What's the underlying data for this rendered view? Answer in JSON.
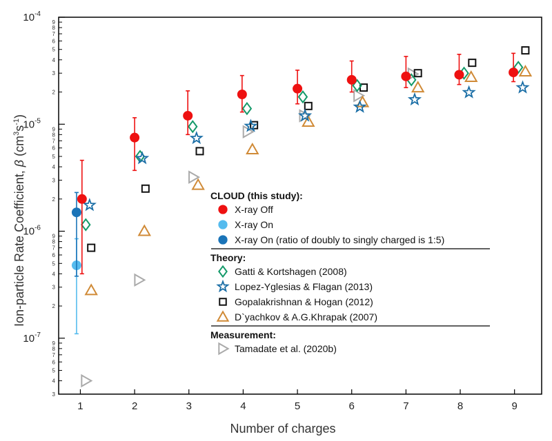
{
  "chart_data": {
    "type": "scatter",
    "xlabel": "Number of charges",
    "ylabel": {
      "text": "Ion-particle Rate Coefficient, ",
      "symbol": "β",
      "unit_open": " (cm",
      "unit_exp1": "3",
      "unit_mid": "s",
      "unit_exp2": "-1",
      "unit_close": ")"
    },
    "xlim": [
      0.6,
      9.5
    ],
    "ylim": [
      3e-08,
      0.0001
    ],
    "yscale": "log",
    "x_ticks": [
      "1",
      "2",
      "3",
      "4",
      "5",
      "6",
      "7",
      "8",
      "9"
    ],
    "y_major_ticks": [
      {
        "value": 1e-07,
        "base": "10",
        "exp": "-7"
      },
      {
        "value": 1e-06,
        "base": "10",
        "exp": "-6"
      },
      {
        "value": 1e-05,
        "base": "10",
        "exp": "-5"
      },
      {
        "value": 0.0001,
        "base": "10",
        "exp": "-4"
      }
    ],
    "y_minor_labels": [
      "2",
      "3",
      "4",
      "5",
      "6",
      "7",
      "8",
      "9"
    ],
    "grid": false,
    "legend": {
      "position": "center-right",
      "groups": [
        {
          "heading": "CLOUD (this study):",
          "entries": [
            {
              "label": "X-ray Off",
              "series": 0
            },
            {
              "label": "X-ray On",
              "series": 1
            },
            {
              "label": "X-ray On (ratio of doubly to singly charged is 1:5)",
              "series": 2
            }
          ]
        },
        {
          "heading": "Theory:",
          "entries": [
            {
              "label": "Gatti & Kortshagen (2008)",
              "series": 3
            },
            {
              "label": "Lopez-Yglesias & Flagan (2013)",
              "series": 4
            },
            {
              "label": "Gopalakrishnan & Hogan (2012)",
              "series": 5
            },
            {
              "label": "D`yachkov & A.G.Khrapak (2007)",
              "series": 6
            }
          ]
        },
        {
          "heading": "Measurement:",
          "entries": [
            {
              "label": "Tamadate et al. (2020b)",
              "series": 7
            }
          ]
        }
      ]
    },
    "series": [
      {
        "name": "X-ray Off",
        "marker": "circle-filled",
        "color": "#ee1111",
        "points": [
          {
            "x": 1.03,
            "y": 2e-06,
            "lo": 4e-07,
            "hi": 4.6e-06
          },
          {
            "x": 2.0,
            "y": 7.5e-06,
            "lo": 3.7e-06,
            "hi": 1.15e-05
          },
          {
            "x": 2.98,
            "y": 1.2e-05,
            "lo": 8e-06,
            "hi": 2.05e-05
          },
          {
            "x": 3.98,
            "y": 1.9e-05,
            "lo": 1.3e-05,
            "hi": 2.85e-05
          },
          {
            "x": 5.0,
            "y": 2.15e-05,
            "lo": 1.55e-05,
            "hi": 3.2e-05
          },
          {
            "x": 6.0,
            "y": 2.6e-05,
            "lo": 2e-05,
            "hi": 3.9e-05
          },
          {
            "x": 7.0,
            "y": 2.8e-05,
            "lo": 2.2e-05,
            "hi": 4.3e-05
          },
          {
            "x": 7.98,
            "y": 2.9e-05,
            "lo": 2.35e-05,
            "hi": 4.5e-05
          },
          {
            "x": 8.98,
            "y": 3.05e-05,
            "lo": 2.5e-05,
            "hi": 4.6e-05
          }
        ]
      },
      {
        "name": "X-ray On",
        "marker": "circle-filled",
        "color": "#55bbee",
        "points": [
          {
            "x": 0.93,
            "y": 4.8e-07,
            "lo": 1.1e-07,
            "hi": 8.5e-07
          }
        ]
      },
      {
        "name": "X-ray On (ratio of doubly to singly charged is 1:5)",
        "marker": "circle-filled",
        "color": "#1a74b8",
        "points": [
          {
            "x": 0.93,
            "y": 1.5e-06,
            "lo": 3.8e-07,
            "hi": 2.3e-06
          }
        ]
      },
      {
        "name": "Gatti & Kortshagen (2008)",
        "marker": "diamond",
        "color": "#159a6a",
        "points": [
          {
            "x": 1.1,
            "y": 1.15e-06
          },
          {
            "x": 2.1,
            "y": 5e-06
          },
          {
            "x": 3.07,
            "y": 9.5e-06
          },
          {
            "x": 4.07,
            "y": 1.4e-05
          },
          {
            "x": 5.1,
            "y": 1.8e-05
          },
          {
            "x": 6.1,
            "y": 2.3e-05
          },
          {
            "x": 7.1,
            "y": 2.6e-05
          },
          {
            "x": 8.07,
            "y": 3e-05
          },
          {
            "x": 9.07,
            "y": 3.4e-05
          }
        ]
      },
      {
        "name": "Lopez-Yglesias & Flagan (2013)",
        "marker": "star",
        "color": "#1a6ea6",
        "points": [
          {
            "x": 1.17,
            "y": 1.75e-06
          },
          {
            "x": 2.14,
            "y": 4.8e-06
          },
          {
            "x": 3.14,
            "y": 7.4e-06
          },
          {
            "x": 4.14,
            "y": 9.6e-06
          },
          {
            "x": 5.14,
            "y": 1.2e-05
          },
          {
            "x": 6.15,
            "y": 1.45e-05
          },
          {
            "x": 7.16,
            "y": 1.7e-05
          },
          {
            "x": 8.16,
            "y": 1.98e-05
          },
          {
            "x": 9.15,
            "y": 2.2e-05
          }
        ]
      },
      {
        "name": "Gopalakrishnan & Hogan (2012)",
        "marker": "square",
        "color": "#111111",
        "points": [
          {
            "x": 1.2,
            "y": 7e-07
          },
          {
            "x": 2.2,
            "y": 2.5e-06
          },
          {
            "x": 3.2,
            "y": 5.6e-06
          },
          {
            "x": 4.2,
            "y": 9.8e-06
          },
          {
            "x": 5.2,
            "y": 1.48e-05
          },
          {
            "x": 6.22,
            "y": 2.2e-05
          },
          {
            "x": 7.22,
            "y": 3e-05
          },
          {
            "x": 8.22,
            "y": 3.75e-05
          },
          {
            "x": 9.2,
            "y": 4.9e-05
          }
        ]
      },
      {
        "name": "D`yachkov & A.G.Khrapak (2007)",
        "marker": "triangle-up",
        "color": "#d08a36",
        "points": [
          {
            "x": 1.2,
            "y": 2.8e-07
          },
          {
            "x": 2.18,
            "y": 1e-06
          },
          {
            "x": 3.17,
            "y": 2.7e-06
          },
          {
            "x": 4.17,
            "y": 5.8e-06
          },
          {
            "x": 5.2,
            "y": 1.05e-05
          },
          {
            "x": 6.2,
            "y": 1.6e-05
          },
          {
            "x": 7.22,
            "y": 2.2e-05
          },
          {
            "x": 8.2,
            "y": 2.75e-05
          },
          {
            "x": 9.2,
            "y": 3.1e-05
          }
        ]
      },
      {
        "name": "Tamadate et al. (2020b)",
        "marker": "triangle-right",
        "color": "#aaaaaa",
        "points": [
          {
            "x": 1.1,
            "y": 4e-08
          },
          {
            "x": 2.08,
            "y": 3.5e-07
          },
          {
            "x": 3.08,
            "y": 3.2e-06
          },
          {
            "x": 4.08,
            "y": 8.5e-06
          },
          {
            "x": 5.12,
            "y": 1.2e-05
          },
          {
            "x": 6.12,
            "y": 1.85e-05
          },
          {
            "x": 7.12,
            "y": 2.95e-05
          }
        ]
      }
    ]
  }
}
